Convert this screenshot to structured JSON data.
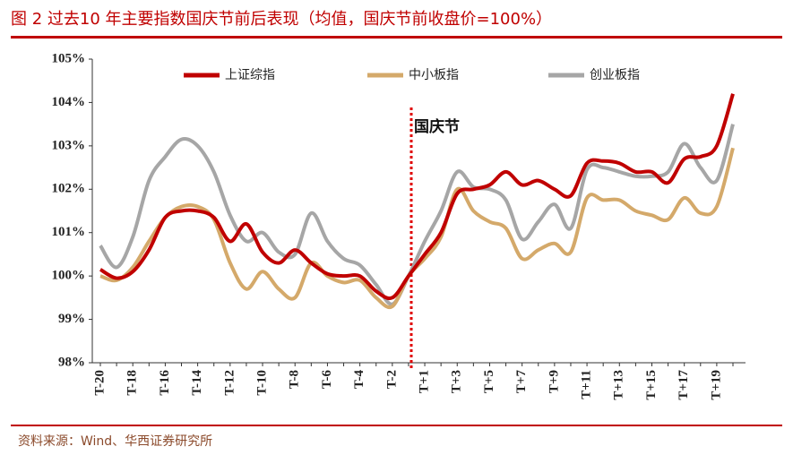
{
  "chart_data": {
    "type": "line",
    "title": "图 2 过去10 年主要指数国庆节前后表现（均值，国庆节前收盘价=100%）",
    "source": "资料来源：Wind、华西证券研究所",
    "annotation": "国庆节",
    "categories": [
      "T-20",
      null,
      "T-18",
      null,
      "T-16",
      null,
      "T-14",
      null,
      "T-12",
      null,
      "T-10",
      null,
      "T-8",
      null,
      "T-6",
      null,
      "T-4",
      null,
      "T-2",
      null,
      "T+1",
      null,
      "T+3",
      null,
      "T+5",
      null,
      "T+7",
      null,
      "T+9",
      null,
      "T+11",
      null,
      "T+13",
      null,
      "T+15",
      null,
      "T+17",
      null,
      "T+19",
      null
    ],
    "series": [
      {
        "name": "上证综指",
        "color": "#c00000",
        "values": [
          100.15,
          99.95,
          100.1,
          100.6,
          101.35,
          101.5,
          101.5,
          101.35,
          100.8,
          101.2,
          100.55,
          100.3,
          100.6,
          100.3,
          100.05,
          100.0,
          100.0,
          99.65,
          99.5,
          100.0,
          100.5,
          101.0,
          101.9,
          102.0,
          102.1,
          102.4,
          102.1,
          102.2,
          102.0,
          101.85,
          102.6,
          102.65,
          102.6,
          102.4,
          102.4,
          102.15,
          102.7,
          102.75,
          103.0,
          104.2
        ]
      },
      {
        "name": "中小板指",
        "color": "#d4a96a",
        "values": [
          100.0,
          99.9,
          100.2,
          100.8,
          101.35,
          101.6,
          101.6,
          101.3,
          100.3,
          99.7,
          100.1,
          99.7,
          99.5,
          100.3,
          100.0,
          99.85,
          99.9,
          99.5,
          99.3,
          100.0,
          100.4,
          100.9,
          102.0,
          101.5,
          101.25,
          101.1,
          100.4,
          100.6,
          100.75,
          100.55,
          101.8,
          101.75,
          101.75,
          101.5,
          101.4,
          101.3,
          101.8,
          101.45,
          101.6,
          102.95
        ]
      },
      {
        "name": "创业板指",
        "color": "#a6a6a6",
        "values": [
          100.7,
          100.2,
          100.9,
          102.2,
          102.75,
          103.15,
          103.0,
          102.4,
          101.4,
          100.8,
          101.0,
          100.55,
          100.5,
          101.45,
          100.8,
          100.4,
          100.25,
          99.8,
          99.35,
          100.0,
          100.8,
          101.5,
          102.4,
          102.05,
          102.0,
          101.75,
          100.85,
          101.25,
          101.65,
          101.1,
          102.45,
          102.5,
          102.4,
          102.3,
          102.3,
          102.4,
          103.05,
          102.5,
          102.2,
          103.5
        ]
      }
    ],
    "ylim": [
      98,
      105
    ],
    "yticks": [
      {
        "value": 98,
        "label": "98%"
      },
      {
        "value": 99,
        "label": "99%"
      },
      {
        "value": 100,
        "label": "100%"
      },
      {
        "value": 101,
        "label": "101%"
      },
      {
        "value": 102,
        "label": "102%"
      },
      {
        "value": 103,
        "label": "103%"
      },
      {
        "value": 104,
        "label": "104%"
      },
      {
        "value": 105,
        "label": "105%"
      }
    ],
    "grid": false,
    "legend": "top"
  }
}
